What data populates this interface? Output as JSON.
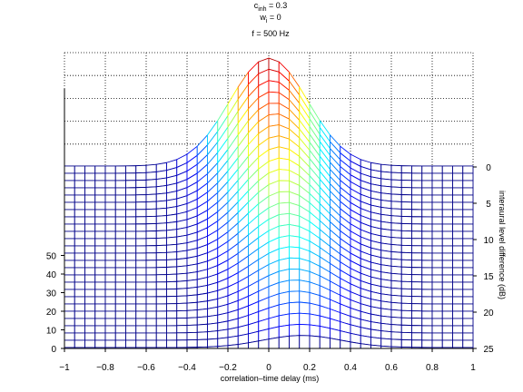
{
  "chart_data": {
    "type": "surface",
    "title_lines": [
      {
        "base": "c",
        "sub": "inh",
        "rest": " = 0.3"
      },
      {
        "base": "w",
        "sub": "i",
        "rest": " = 0"
      },
      {
        "base": "f = 500 Hz",
        "sub": "",
        "rest": ""
      }
    ],
    "xlabel": "correlation–time delay (ms)",
    "ylabel_right": "interaural level difference (dB)",
    "xlim": [
      -1,
      1
    ],
    "ild_range": [
      0,
      25
    ],
    "zlim": [
      0,
      60
    ],
    "xticks": [
      "−1",
      "−0.8",
      "−0.6",
      "−0.4",
      "−0.2",
      "0",
      "0.2",
      "0.4",
      "0.6",
      "0.8",
      "1"
    ],
    "ild_ticks": [
      "0",
      "5",
      "10",
      "15",
      "20",
      "25"
    ],
    "z_ticks": [
      "0",
      "10",
      "20",
      "30",
      "40",
      "50"
    ],
    "grid": true,
    "colormap": "jet",
    "model": {
      "peak_ms_at_ild_0": 0.0,
      "peak_shift_ms_per_dB": 0.0065,
      "gaussian_width_ms": 0.19,
      "peak_height_at_ild_0": 58,
      "peak_height_at_ild_25": 6.5,
      "baseline": 0.5,
      "n_time_samples": 41,
      "n_ild_rows": 26
    }
  }
}
